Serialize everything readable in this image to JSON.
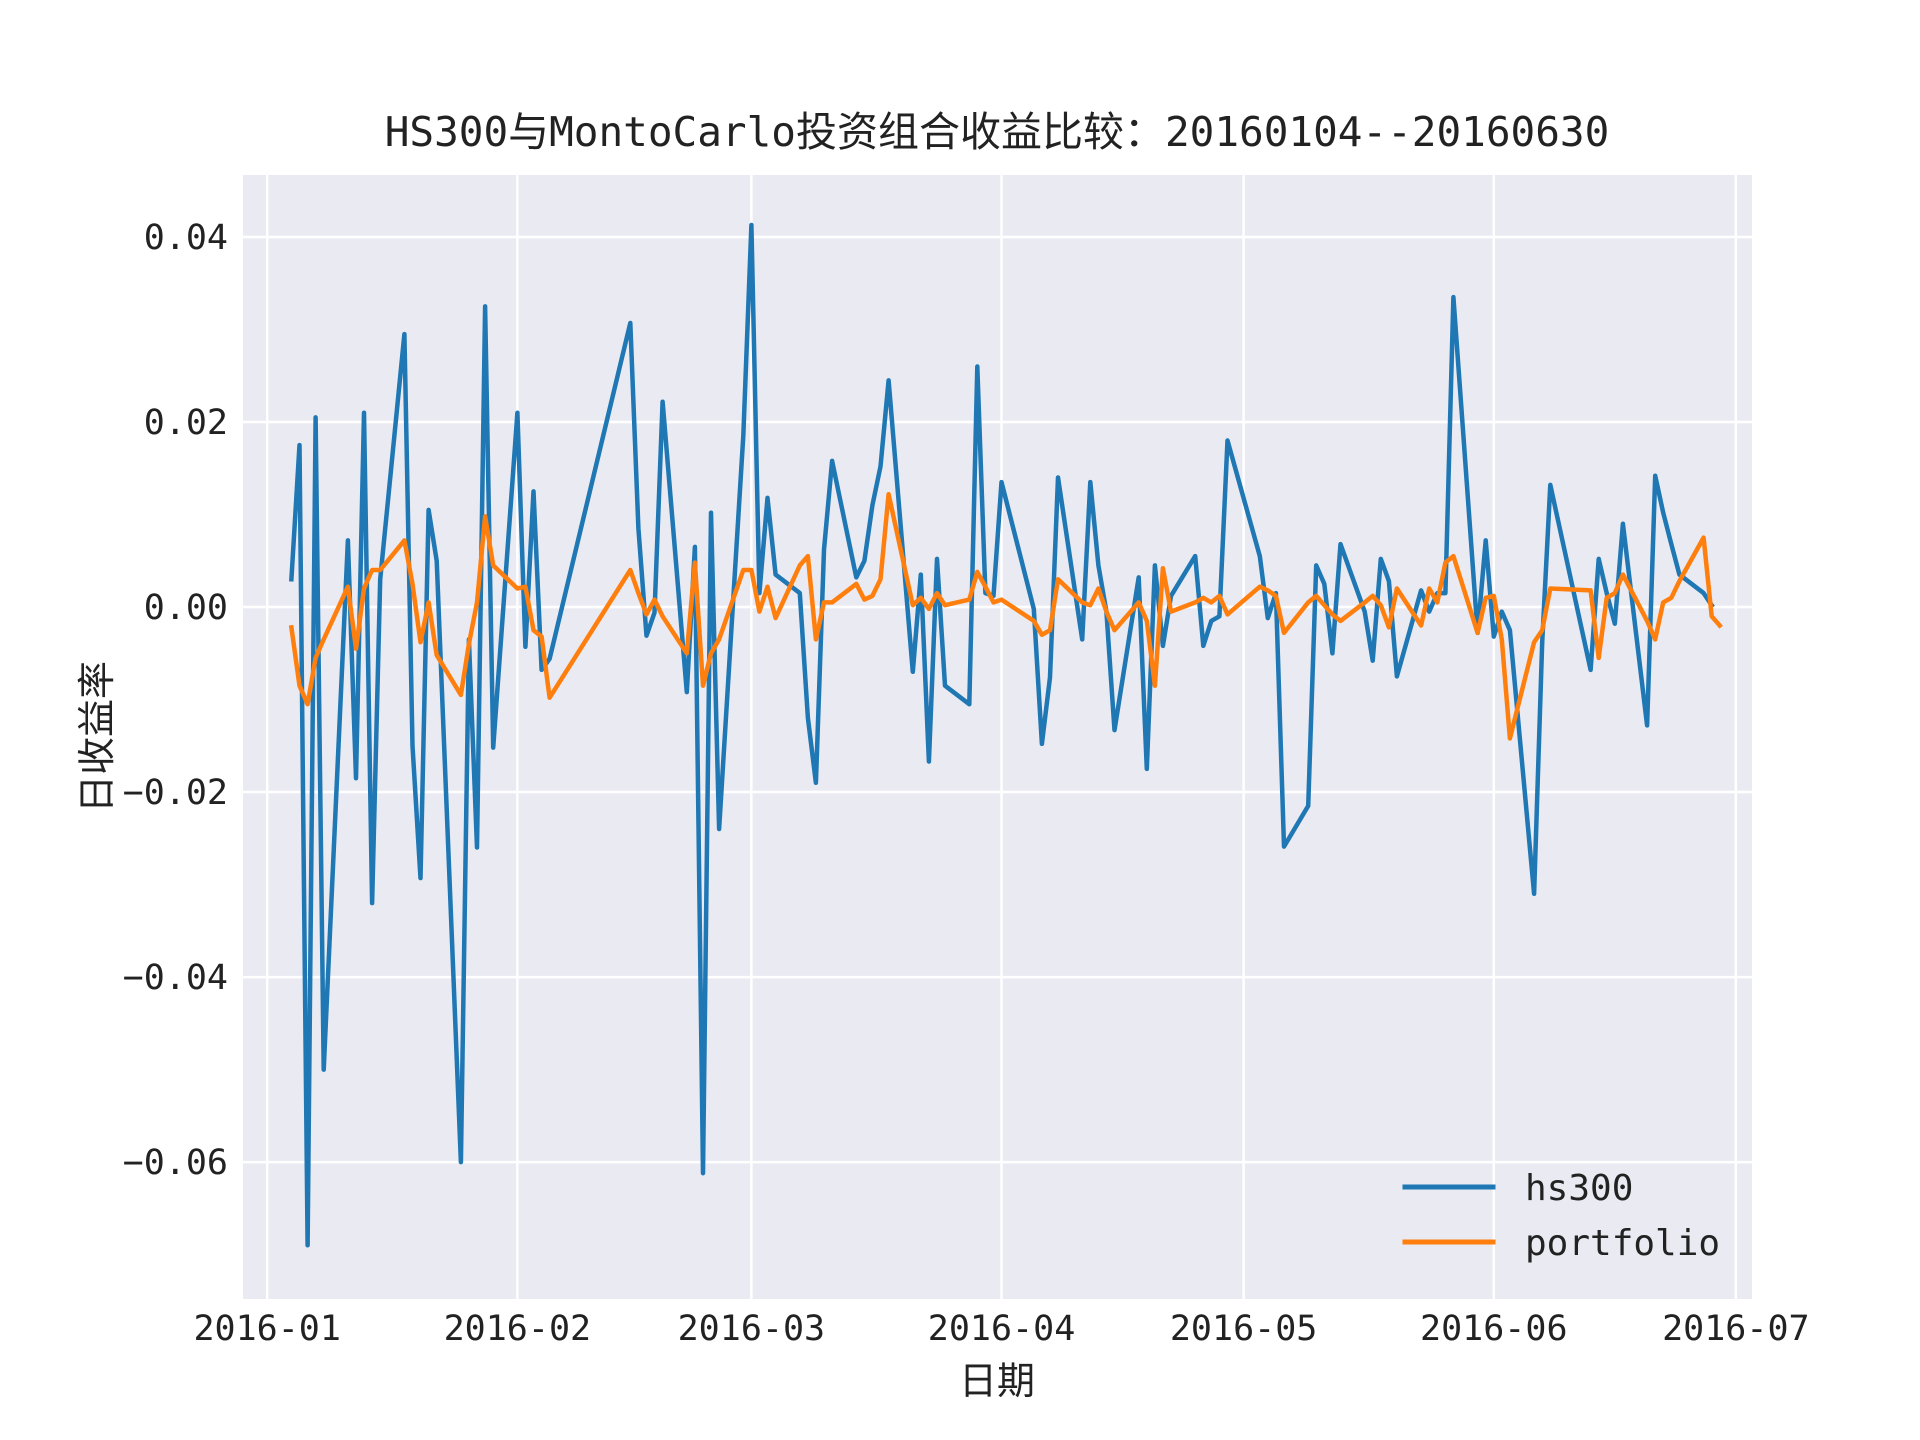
{
  "chart_data": {
    "type": "line",
    "title": "HS300与MontoCarlo投资组合收益比较：20160104--20160630",
    "xlabel": "日期",
    "ylabel": "日收益率",
    "xlim": [
      "2015-12-29",
      "2016-07-03"
    ],
    "ylim": [
      -0.0748,
      0.0467
    ],
    "x_ticks": [
      "2016-01-01",
      "2016-02-01",
      "2016-03-01",
      "2016-04-01",
      "2016-05-01",
      "2016-06-01",
      "2016-07-01"
    ],
    "x_tick_labels": [
      "2016-01",
      "2016-02",
      "2016-03",
      "2016-04",
      "2016-05",
      "2016-06",
      "2016-07"
    ],
    "y_ticks": [
      -0.06,
      -0.04,
      -0.02,
      0.0,
      0.02,
      0.04
    ],
    "y_tick_labels": [
      "−0.06",
      "−0.04",
      "−0.02",
      "0.00",
      "0.02",
      "0.04"
    ],
    "grid": true,
    "legend_position": "lower-right",
    "background_color": "#eaeaf2",
    "series": [
      {
        "name": "hs300",
        "color": "#1f77b4",
        "points": [
          [
            "2016-01-04",
            0.003
          ],
          [
            "2016-01-05",
            0.0175
          ],
          [
            "2016-01-06",
            -0.069
          ],
          [
            "2016-01-07",
            0.0205
          ],
          [
            "2016-01-08",
            -0.05
          ],
          [
            "2016-01-11",
            0.0072
          ],
          [
            "2016-01-12",
            -0.0185
          ],
          [
            "2016-01-13",
            0.021
          ],
          [
            "2016-01-14",
            -0.032
          ],
          [
            "2016-01-15",
            0.003
          ],
          [
            "2016-01-18",
            0.0295
          ],
          [
            "2016-01-19",
            -0.015
          ],
          [
            "2016-01-20",
            -0.0293
          ],
          [
            "2016-01-21",
            0.0105
          ],
          [
            "2016-01-22",
            0.005
          ],
          [
            "2016-01-25",
            -0.06
          ],
          [
            "2016-01-26",
            -0.0035
          ],
          [
            "2016-01-27",
            -0.026
          ],
          [
            "2016-01-28",
            0.0325
          ],
          [
            "2016-01-29",
            -0.0152
          ],
          [
            "2016-02-01",
            0.021
          ],
          [
            "2016-02-02",
            -0.0043
          ],
          [
            "2016-02-03",
            0.0125
          ],
          [
            "2016-02-04",
            -0.0068
          ],
          [
            "2016-02-05",
            -0.0056
          ],
          [
            "2016-02-15",
            0.0307
          ],
          [
            "2016-02-16",
            0.0085
          ],
          [
            "2016-02-17",
            -0.0031
          ],
          [
            "2016-02-18",
            -0.0006
          ],
          [
            "2016-02-19",
            0.0222
          ],
          [
            "2016-02-22",
            -0.0092
          ],
          [
            "2016-02-23",
            0.0065
          ],
          [
            "2016-02-24",
            -0.0612
          ],
          [
            "2016-02-25",
            0.0102
          ],
          [
            "2016-02-26",
            -0.024
          ],
          [
            "2016-02-29",
            0.0185
          ],
          [
            "2016-03-01",
            0.0413
          ],
          [
            "2016-03-02",
            0.0015
          ],
          [
            "2016-03-03",
            0.0118
          ],
          [
            "2016-03-04",
            0.0035
          ],
          [
            "2016-03-07",
            0.0015
          ],
          [
            "2016-03-08",
            -0.012
          ],
          [
            "2016-03-09",
            -0.019
          ],
          [
            "2016-03-10",
            0.0062
          ],
          [
            "2016-03-11",
            0.0158
          ],
          [
            "2016-03-14",
            0.0032
          ],
          [
            "2016-03-15",
            0.005
          ],
          [
            "2016-03-16",
            0.011
          ],
          [
            "2016-03-17",
            0.0152
          ],
          [
            "2016-03-18",
            0.0245
          ],
          [
            "2016-03-21",
            -0.007
          ],
          [
            "2016-03-22",
            0.0035
          ],
          [
            "2016-03-23",
            -0.0167
          ],
          [
            "2016-03-24",
            0.0052
          ],
          [
            "2016-03-25",
            -0.0085
          ],
          [
            "2016-03-28",
            -0.0105
          ],
          [
            "2016-03-29",
            0.026
          ],
          [
            "2016-03-30",
            0.0015
          ],
          [
            "2016-03-31",
            0.0012
          ],
          [
            "2016-04-01",
            0.0135
          ],
          [
            "2016-04-05",
            -0.0002
          ],
          [
            "2016-04-06",
            -0.0148
          ],
          [
            "2016-04-07",
            -0.0076
          ],
          [
            "2016-04-08",
            0.014
          ],
          [
            "2016-04-11",
            -0.0035
          ],
          [
            "2016-04-12",
            0.0135
          ],
          [
            "2016-04-13",
            0.0045
          ],
          [
            "2016-04-14",
            -0.0005
          ],
          [
            "2016-04-15",
            -0.0133
          ],
          [
            "2016-04-18",
            0.0032
          ],
          [
            "2016-04-19",
            -0.0175
          ],
          [
            "2016-04-20",
            0.0045
          ],
          [
            "2016-04-21",
            -0.0042
          ],
          [
            "2016-04-22",
            0.0012
          ],
          [
            "2016-04-25",
            0.0055
          ],
          [
            "2016-04-26",
            -0.0042
          ],
          [
            "2016-04-27",
            -0.0015
          ],
          [
            "2016-04-28",
            -0.001
          ],
          [
            "2016-04-29",
            0.018
          ],
          [
            "2016-05-03",
            0.0055
          ],
          [
            "2016-05-04",
            -0.0012
          ],
          [
            "2016-05-05",
            0.0015
          ],
          [
            "2016-05-06",
            -0.0259
          ],
          [
            "2016-05-09",
            -0.0215
          ],
          [
            "2016-05-10",
            0.0045
          ],
          [
            "2016-05-11",
            0.0025
          ],
          [
            "2016-05-12",
            -0.005
          ],
          [
            "2016-05-13",
            0.0068
          ],
          [
            "2016-05-16",
            -0.0005
          ],
          [
            "2016-05-17",
            -0.0058
          ],
          [
            "2016-05-18",
            0.0052
          ],
          [
            "2016-05-19",
            0.0028
          ],
          [
            "2016-05-20",
            -0.0075
          ],
          [
            "2016-05-23",
            0.0018
          ],
          [
            "2016-05-24",
            -0.0005
          ],
          [
            "2016-05-25",
            0.0015
          ],
          [
            "2016-05-26",
            0.0015
          ],
          [
            "2016-05-27",
            0.0335
          ],
          [
            "2016-05-30",
            -0.0028
          ],
          [
            "2016-05-31",
            0.0072
          ],
          [
            "2016-06-01",
            -0.0032
          ],
          [
            "2016-06-02",
            -0.0005
          ],
          [
            "2016-06-03",
            -0.0025
          ],
          [
            "2016-06-06",
            -0.031
          ],
          [
            "2016-06-07",
            -0.0038
          ],
          [
            "2016-06-08",
            0.0132
          ],
          [
            "2016-06-13",
            -0.0068
          ],
          [
            "2016-06-14",
            0.0052
          ],
          [
            "2016-06-15",
            0.0015
          ],
          [
            "2016-06-16",
            -0.0018
          ],
          [
            "2016-06-17",
            0.009
          ],
          [
            "2016-06-20",
            -0.0128
          ],
          [
            "2016-06-21",
            0.0142
          ],
          [
            "2016-06-22",
            0.0102
          ],
          [
            "2016-06-23",
            0.0068
          ],
          [
            "2016-06-24",
            0.0035
          ],
          [
            "2016-06-27",
            0.0015
          ],
          [
            "2016-06-28",
            0.0002
          ]
        ]
      },
      {
        "name": "portfolio",
        "color": "#ff7f0e",
        "points": [
          [
            "2016-01-04",
            -0.0022
          ],
          [
            "2016-01-05",
            -0.0085
          ],
          [
            "2016-01-06",
            -0.0105
          ],
          [
            "2016-01-07",
            -0.0055
          ],
          [
            "2016-01-08",
            -0.0035
          ],
          [
            "2016-01-11",
            0.0022
          ],
          [
            "2016-01-12",
            -0.0045
          ],
          [
            "2016-01-13",
            0.002
          ],
          [
            "2016-01-14",
            0.004
          ],
          [
            "2016-01-15",
            0.004
          ],
          [
            "2016-01-18",
            0.0072
          ],
          [
            "2016-01-19",
            0.0025
          ],
          [
            "2016-01-20",
            -0.0038
          ],
          [
            "2016-01-21",
            0.0005
          ],
          [
            "2016-01-22",
            -0.0052
          ],
          [
            "2016-01-25",
            -0.0095
          ],
          [
            "2016-01-26",
            -0.004
          ],
          [
            "2016-01-27",
            0.0005
          ],
          [
            "2016-01-28",
            0.0098
          ],
          [
            "2016-01-29",
            0.0045
          ],
          [
            "2016-02-01",
            0.002
          ],
          [
            "2016-02-02",
            0.0022
          ],
          [
            "2016-02-03",
            -0.0025
          ],
          [
            "2016-02-04",
            -0.0032
          ],
          [
            "2016-02-05",
            -0.0098
          ],
          [
            "2016-02-15",
            0.004
          ],
          [
            "2016-02-16",
            0.0015
          ],
          [
            "2016-02-17",
            -0.0008
          ],
          [
            "2016-02-18",
            0.0008
          ],
          [
            "2016-02-19",
            -0.001
          ],
          [
            "2016-02-22",
            -0.005
          ],
          [
            "2016-02-23",
            0.0048
          ],
          [
            "2016-02-24",
            -0.0085
          ],
          [
            "2016-02-25",
            -0.005
          ],
          [
            "2016-02-26",
            -0.0035
          ],
          [
            "2016-02-29",
            0.004
          ],
          [
            "2016-03-01",
            0.004
          ],
          [
            "2016-03-02",
            -0.0005
          ],
          [
            "2016-03-03",
            0.0022
          ],
          [
            "2016-03-04",
            -0.0012
          ],
          [
            "2016-03-07",
            0.0045
          ],
          [
            "2016-03-08",
            0.0055
          ],
          [
            "2016-03-09",
            -0.0035
          ],
          [
            "2016-03-10",
            0.0005
          ],
          [
            "2016-03-11",
            0.0005
          ],
          [
            "2016-03-14",
            0.0025
          ],
          [
            "2016-03-15",
            0.0008
          ],
          [
            "2016-03-16",
            0.0012
          ],
          [
            "2016-03-17",
            0.003
          ],
          [
            "2016-03-18",
            0.0122
          ],
          [
            "2016-03-21",
            0.0002
          ],
          [
            "2016-03-22",
            0.001
          ],
          [
            "2016-03-23",
            -0.0002
          ],
          [
            "2016-03-24",
            0.0015
          ],
          [
            "2016-03-25",
            0.0002
          ],
          [
            "2016-03-28",
            0.0008
          ],
          [
            "2016-03-29",
            0.0038
          ],
          [
            "2016-03-30",
            0.0022
          ],
          [
            "2016-03-31",
            0.0005
          ],
          [
            "2016-04-01",
            0.0008
          ],
          [
            "2016-04-05",
            -0.0015
          ],
          [
            "2016-04-06",
            -0.003
          ],
          [
            "2016-04-07",
            -0.0025
          ],
          [
            "2016-04-08",
            0.003
          ],
          [
            "2016-04-11",
            0.0005
          ],
          [
            "2016-04-12",
            0.0002
          ],
          [
            "2016-04-13",
            0.002
          ],
          [
            "2016-04-14",
            -0.0005
          ],
          [
            "2016-04-15",
            -0.0025
          ],
          [
            "2016-04-18",
            0.0005
          ],
          [
            "2016-04-19",
            -0.0015
          ],
          [
            "2016-04-20",
            -0.0085
          ],
          [
            "2016-04-21",
            0.0042
          ],
          [
            "2016-04-22",
            -0.0005
          ],
          [
            "2016-04-25",
            0.0005
          ],
          [
            "2016-04-26",
            0.001
          ],
          [
            "2016-04-27",
            0.0005
          ],
          [
            "2016-04-28",
            0.0012
          ],
          [
            "2016-04-29",
            -0.0008
          ],
          [
            "2016-05-03",
            0.0022
          ],
          [
            "2016-05-04",
            0.0018
          ],
          [
            "2016-05-05",
            0.0012
          ],
          [
            "2016-05-06",
            -0.0028
          ],
          [
            "2016-05-09",
            0.0005
          ],
          [
            "2016-05-10",
            0.0012
          ],
          [
            "2016-05-11",
            0.0002
          ],
          [
            "2016-05-12",
            -0.0008
          ],
          [
            "2016-05-13",
            -0.0015
          ],
          [
            "2016-05-16",
            0.0005
          ],
          [
            "2016-05-17",
            0.0012
          ],
          [
            "2016-05-18",
            0.0002
          ],
          [
            "2016-05-19",
            -0.0022
          ],
          [
            "2016-05-20",
            0.002
          ],
          [
            "2016-05-23",
            -0.002
          ],
          [
            "2016-05-24",
            0.002
          ],
          [
            "2016-05-25",
            0.0005
          ],
          [
            "2016-05-26",
            0.0048
          ],
          [
            "2016-05-27",
            0.0055
          ],
          [
            "2016-05-30",
            -0.0028
          ],
          [
            "2016-05-31",
            0.001
          ],
          [
            "2016-06-01",
            0.0012
          ],
          [
            "2016-06-02",
            -0.0035
          ],
          [
            "2016-06-03",
            -0.0142
          ],
          [
            "2016-06-06",
            -0.0038
          ],
          [
            "2016-06-07",
            -0.0025
          ],
          [
            "2016-06-08",
            0.002
          ],
          [
            "2016-06-13",
            0.0018
          ],
          [
            "2016-06-14",
            -0.0055
          ],
          [
            "2016-06-15",
            0.001
          ],
          [
            "2016-06-16",
            0.0015
          ],
          [
            "2016-06-17",
            0.0035
          ],
          [
            "2016-06-20",
            -0.0015
          ],
          [
            "2016-06-21",
            -0.0035
          ],
          [
            "2016-06-22",
            0.0005
          ],
          [
            "2016-06-23",
            0.001
          ],
          [
            "2016-06-24",
            0.0028
          ],
          [
            "2016-06-27",
            0.0075
          ],
          [
            "2016-06-28",
            -0.001
          ],
          [
            "2016-06-29",
            -0.002
          ]
        ]
      }
    ]
  }
}
